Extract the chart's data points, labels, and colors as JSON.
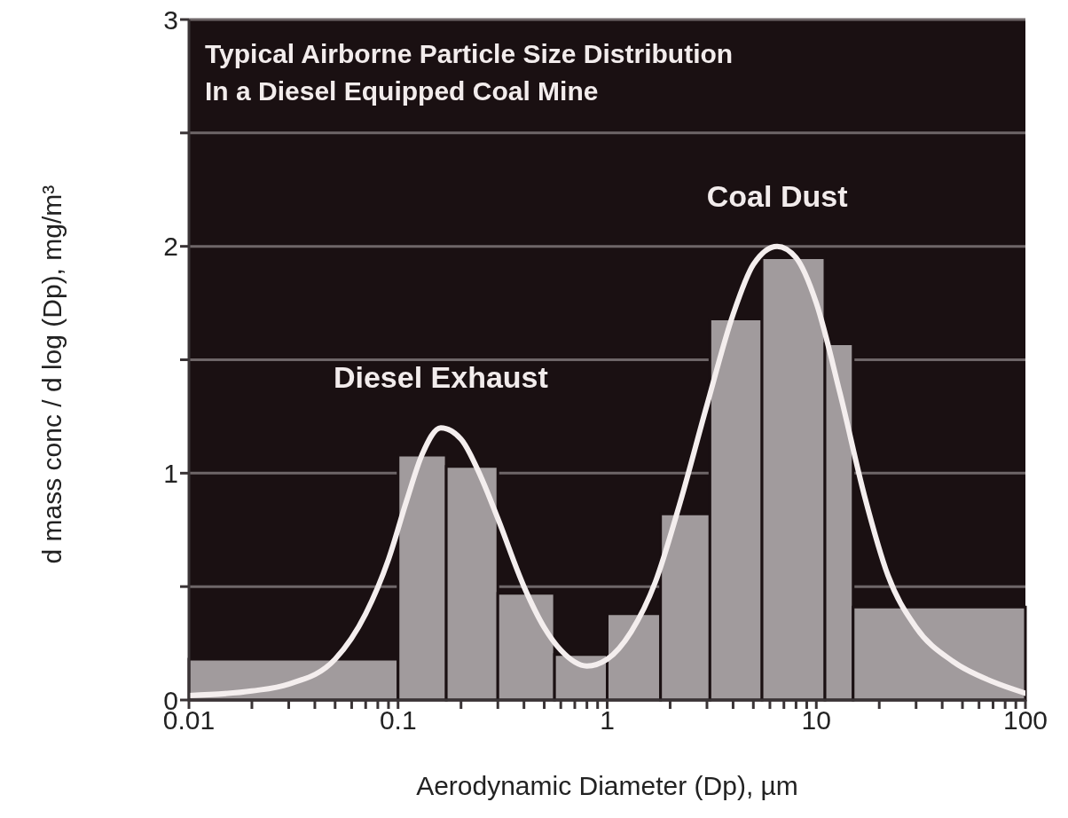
{
  "chart_data": {
    "type": "histogram",
    "title": "Typical Airborne Particle Size Distribution\nIn a Diesel Equipped Coal Mine",
    "xlabel": "Aerodynamic Diameter (Dp), µm",
    "ylabel": "d mass conc / d log (Dp), mg/m³",
    "log": "x",
    "grid": "y",
    "legend": false,
    "xlim": [
      0.01,
      100
    ],
    "xticks": [
      0.01,
      {
        "value": 0.02,
        "label": null
      },
      {
        "value": 0.03,
        "label": null
      },
      {
        "value": 0.04,
        "label": null
      },
      {
        "value": 0.05,
        "label": null
      },
      {
        "value": 0.06,
        "label": null
      },
      {
        "value": 0.07,
        "label": null
      },
      {
        "value": 0.08,
        "label": null
      },
      {
        "value": 0.09,
        "label": null
      },
      0.1,
      {
        "value": 0.2,
        "label": null
      },
      {
        "value": 0.3,
        "label": null
      },
      {
        "value": 0.4,
        "label": null
      },
      {
        "value": 0.5,
        "label": null
      },
      {
        "value": 0.6,
        "label": null
      },
      {
        "value": 0.7,
        "label": null
      },
      {
        "value": 0.8,
        "label": null
      },
      {
        "value": 0.9,
        "label": null
      },
      1,
      {
        "value": 2,
        "label": null
      },
      {
        "value": 3,
        "label": null
      },
      {
        "value": 4,
        "label": null
      },
      {
        "value": 5,
        "label": null
      },
      {
        "value": 6,
        "label": null
      },
      {
        "value": 7,
        "label": null
      },
      {
        "value": 8,
        "label": null
      },
      {
        "value": 9,
        "label": null
      },
      10,
      {
        "value": 20,
        "label": null
      },
      {
        "value": 30,
        "label": null
      },
      {
        "value": 40,
        "label": null
      },
      {
        "value": 50,
        "label": null
      },
      {
        "value": 60,
        "label": null
      },
      {
        "value": 70,
        "label": null
      },
      {
        "value": 80,
        "label": null
      },
      {
        "value": 90,
        "label": null
      },
      100
    ],
    "ylim": [
      0,
      3
    ],
    "yticks": [
      0,
      {
        "value": 0.5,
        "label": null
      },
      1,
      {
        "value": 1.5,
        "label": null
      },
      2,
      {
        "value": 2.5,
        "label": null
      },
      3
    ],
    "series": [
      {
        "color": "#a19b9d",
        "bins": [
          0.01,
          0.1,
          0.17,
          0.3,
          0.56,
          1,
          1.8,
          3.1,
          5.5,
          11,
          15,
          100
        ],
        "values": [
          0.18,
          1.08,
          1.03,
          0.47,
          0.2,
          0.38,
          0.82,
          1.68,
          1.95,
          1.57,
          0.41
        ]
      },
      {
        "type": "line",
        "color": "#f4eeee",
        "marker": "none",
        "line_style": "solid",
        "x": [
          0.01,
          0.02,
          0.03,
          0.05,
          0.07,
          0.09,
          0.11,
          0.13,
          0.16,
          0.2,
          0.25,
          0.3,
          0.4,
          0.5,
          0.6,
          0.8,
          1,
          1.3,
          1.7,
          2.2,
          3,
          4,
          5,
          6.5,
          8,
          10,
          13,
          17,
          22,
          30,
          45,
          70,
          100
        ],
        "values": [
          0.02,
          0.04,
          0.07,
          0.18,
          0.38,
          0.62,
          0.88,
          1.08,
          1.2,
          1.15,
          0.98,
          0.8,
          0.5,
          0.32,
          0.22,
          0.15,
          0.18,
          0.3,
          0.52,
          0.85,
          1.3,
          1.7,
          1.92,
          2.0,
          1.95,
          1.75,
          1.35,
          0.9,
          0.55,
          0.32,
          0.17,
          0.08,
          0.03
        ]
      }
    ],
    "annotations": [
      {
        "text": "Diesel Exhaust",
        "x": 0.16,
        "y": 1.2
      },
      {
        "text": "Coal Dust",
        "x": 6.5,
        "y": 2.0
      }
    ]
  }
}
